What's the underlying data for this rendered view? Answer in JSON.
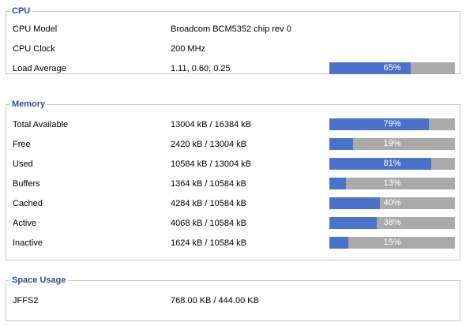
{
  "cpu": {
    "title": "CPU",
    "rows": [
      {
        "label": "CPU Model",
        "value": "Broadcom BCM5352 chip rev 0"
      },
      {
        "label": "CPU Clock",
        "value": "200 MHz"
      },
      {
        "label": "Load Average",
        "value": "1.11, 0.60, 0.25",
        "bar_text": "65%",
        "bar_percent": 65
      }
    ]
  },
  "memory": {
    "title": "Memory",
    "rows": [
      {
        "label": "Total Available",
        "value": "13004 kB / 16384 kB",
        "bar_text": "79%",
        "bar_percent": 79
      },
      {
        "label": "Free",
        "value": "2420 kB / 13004 kB",
        "bar_text": "19%",
        "bar_percent": 19
      },
      {
        "label": "Used",
        "value": "10584 kB / 13004 kB",
        "bar_text": "81%",
        "bar_percent": 81
      },
      {
        "label": "Buffers",
        "value": "1364 kB / 10584 kB",
        "bar_text": "13%",
        "bar_percent": 13
      },
      {
        "label": "Cached",
        "value": "4284 kB / 10584 kB",
        "bar_text": "40%",
        "bar_percent": 40
      },
      {
        "label": "Active",
        "value": "4068 kB / 10584 kB",
        "bar_text": "38%",
        "bar_percent": 38
      },
      {
        "label": "Inactive",
        "value": "1624 kB / 10584 kB",
        "bar_text": "15%",
        "bar_percent": 15
      }
    ]
  },
  "space_usage": {
    "title": "Space Usage",
    "rows": [
      {
        "label": "JFFS2",
        "value": "768.00 KB / 444.00 KB"
      }
    ]
  },
  "colors": {
    "section_title": "#2c4f98",
    "bar_fill": "#4a72c8",
    "bar_track": "#aaaaaa",
    "border": "#c8c8c8"
  }
}
